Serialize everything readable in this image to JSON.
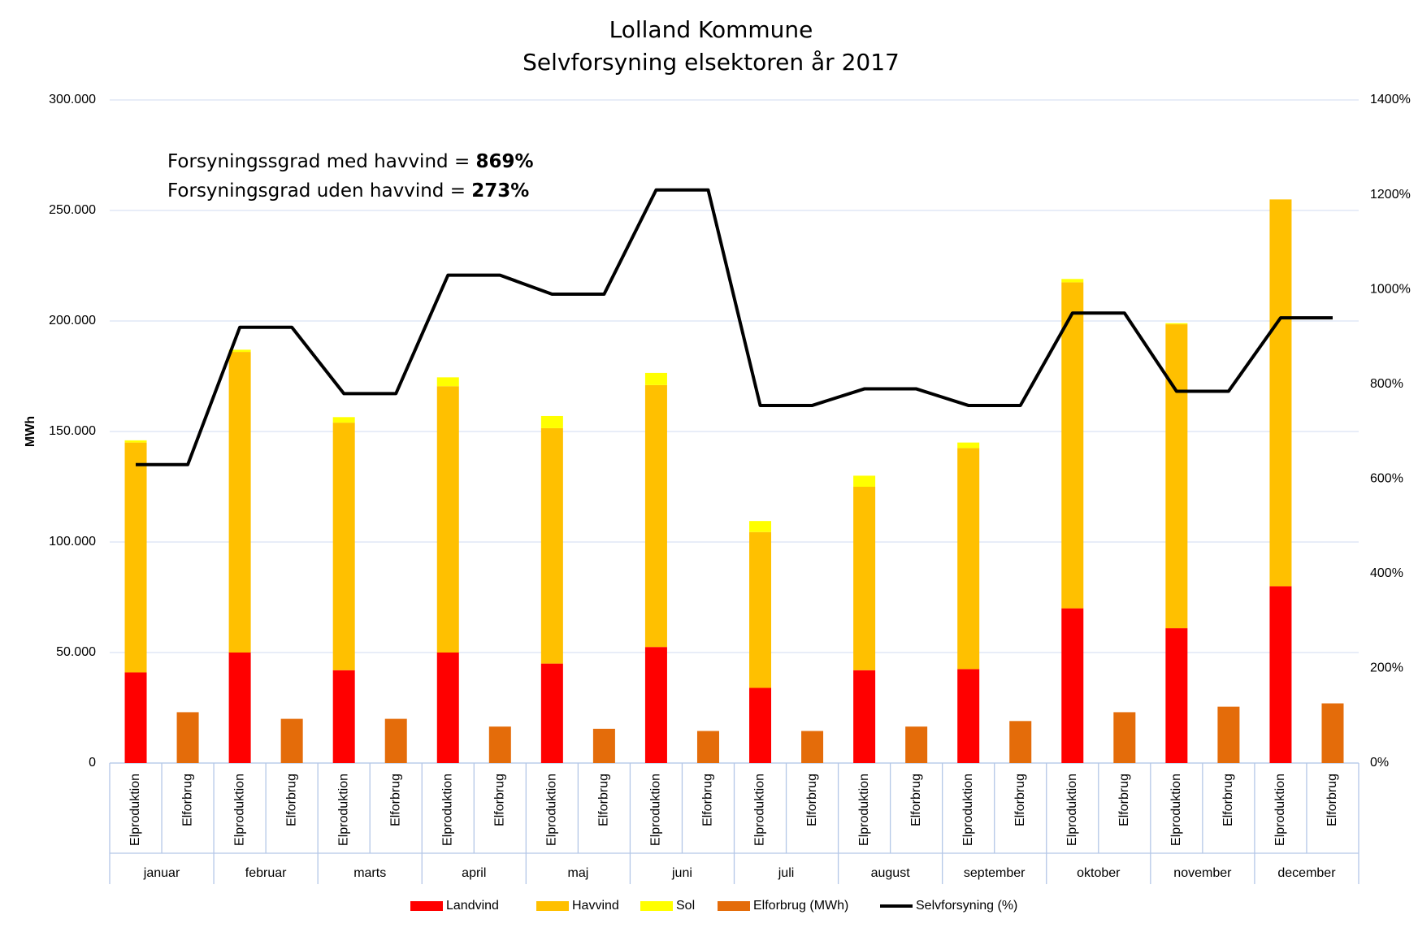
{
  "chart_data": {
    "type": "bar",
    "stacked": true,
    "title": [
      "Lolland Kommune",
      "Selvforsyning elsektoren år 2017"
    ],
    "annotations": [
      {
        "text": "Forsyningssgrad med havvind = ",
        "bold": "869%"
      },
      {
        "text": "Forsyningsgrad uden havvind = ",
        "bold": "273%"
      }
    ],
    "y_label": "MWh",
    "categories": [
      "Elproduktion",
      "Elforbrug",
      "Elproduktion",
      "Elforbrug",
      "Elproduktion",
      "Elforbrug",
      "Elproduktion",
      "Elforbrug",
      "Elproduktion",
      "Elforbrug",
      "Elproduktion",
      "Elforbrug",
      "Elproduktion",
      "Elforbrug",
      "Elproduktion",
      "Elforbrug",
      "Elproduktion",
      "Elforbrug",
      "Elproduktion",
      "Elforbrug",
      "Elproduktion",
      "Elforbrug",
      "Elproduktion",
      "Elforbrug"
    ],
    "groups": [
      "januar",
      "februar",
      "marts",
      "april",
      "maj",
      "juni",
      "juli",
      "august",
      "september",
      "oktober",
      "november",
      "december"
    ],
    "series": [
      {
        "name": "Landvind",
        "color": "#ff0000",
        "values": [
          41000,
          null,
          50000,
          null,
          42000,
          null,
          50000,
          null,
          45000,
          null,
          52500,
          null,
          34000,
          null,
          42000,
          null,
          42500,
          null,
          70000,
          null,
          61000,
          null,
          80000,
          null
        ]
      },
      {
        "name": "Havvind",
        "color": "#ffc000",
        "values": [
          104000,
          null,
          136000,
          null,
          112000,
          null,
          120500,
          null,
          106500,
          null,
          118500,
          null,
          70500,
          null,
          83000,
          null,
          100000,
          null,
          147500,
          null,
          137500,
          null,
          175000,
          null
        ]
      },
      {
        "name": "Sol",
        "color": "#ffff00",
        "values": [
          1000,
          null,
          1000,
          null,
          2500,
          null,
          4000,
          null,
          5500,
          null,
          5500,
          null,
          5000,
          null,
          5000,
          null,
          2500,
          null,
          1500,
          null,
          500,
          null,
          0,
          null
        ]
      },
      {
        "name": "Elforbrug (MWh)",
        "color": "#e46c0a",
        "values": [
          null,
          23000,
          null,
          20000,
          null,
          20000,
          null,
          16500,
          null,
          15500,
          null,
          14500,
          null,
          14500,
          null,
          16500,
          null,
          19000,
          null,
          23000,
          null,
          25500,
          null,
          27000
        ]
      },
      {
        "name": "Selvforsyning (%)",
        "color": "#000000",
        "type": "line",
        "axis": "y2",
        "values": [
          630,
          630,
          920,
          920,
          780,
          780,
          1030,
          1030,
          990,
          990,
          1210,
          1210,
          755,
          755,
          790,
          790,
          755,
          755,
          950,
          950,
          785,
          785,
          940,
          940
        ]
      }
    ],
    "ylim": [
      0,
      300000
    ],
    "yticks": [
      0,
      {
        "value": 50000,
        "label": "50.000"
      },
      {
        "value": 100000,
        "label": "100.000"
      },
      {
        "value": 150000,
        "label": "150.000"
      },
      {
        "value": 200000,
        "label": "200.000"
      },
      {
        "value": 250000,
        "label": "250.000"
      },
      {
        "value": 300000,
        "label": "300.000"
      }
    ],
    "y2lim": [
      0,
      1400
    ],
    "y2ticks": [
      {
        "value": 0,
        "label": "0%"
      },
      {
        "value": 200,
        "label": "200%"
      },
      {
        "value": 400,
        "label": "400%"
      },
      {
        "value": 600,
        "label": "600%"
      },
      {
        "value": 800,
        "label": "800%"
      },
      {
        "value": 1000,
        "label": "1000%"
      },
      {
        "value": 1200,
        "label": "1200%"
      },
      {
        "value": 1400,
        "label": "1400%"
      }
    ],
    "grid": true,
    "legend": "bottom"
  }
}
